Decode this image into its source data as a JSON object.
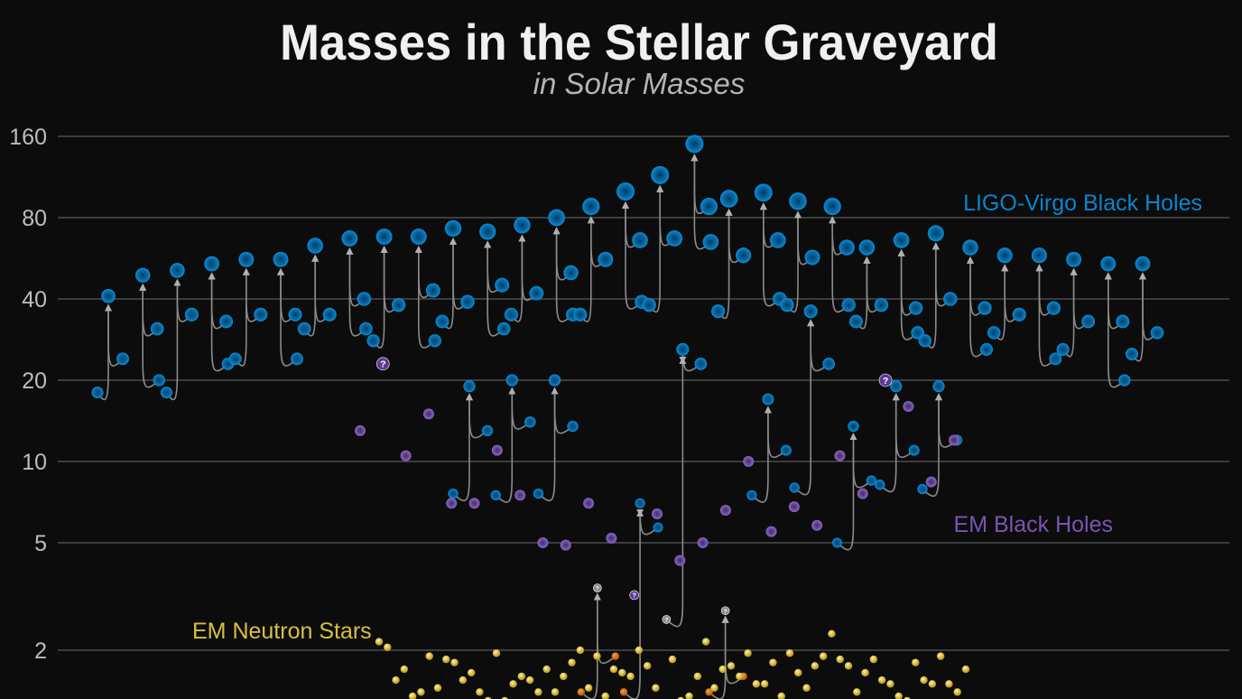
{
  "chart_data": {
    "type": "scatter",
    "title": "Masses in the Stellar Graveyard",
    "subtitle": "in Solar Masses",
    "yscale": "log",
    "ylim": [
      1.3,
      175
    ],
    "yticks": [
      160,
      80,
      40,
      20,
      10,
      5,
      2
    ],
    "ytick_labels": [
      "160",
      "80",
      "40",
      "20",
      "10",
      "5",
      "2"
    ],
    "grid": true,
    "legend": {
      "ligo": "LIGO-Virgo Black Holes",
      "em_bh": "EM Black Holes",
      "em_ns": "EM Neutron Stars"
    },
    "colors": {
      "ligo": "#0a85cc",
      "em_bh": "#7a55b0",
      "em_ns": "#d8c040",
      "ligo_ns": "#e07a10",
      "unknown": "#c8c8c8",
      "grid": "#5a5a5a",
      "arrow": "#8a8a8a"
    },
    "ligo_mergers": [
      {
        "final": 41,
        "m1": 24,
        "m2": 18
      },
      {
        "final": 49,
        "m1": 31,
        "m2": 20
      },
      {
        "final": 51,
        "m1": 35,
        "m2": 18
      },
      {
        "final": 54,
        "m1": 33,
        "m2": 23
      },
      {
        "final": 56,
        "m1": 35,
        "m2": 24
      },
      {
        "final": 56,
        "m1": 35,
        "m2": 24
      },
      {
        "final": 63,
        "m1": 35,
        "m2": 31
      },
      {
        "final": 67,
        "m1": 40,
        "m2": 31
      },
      {
        "final": 68,
        "m1": 38,
        "m2": 28
      },
      {
        "final": 68,
        "m1": 43,
        "m2": 28
      },
      {
        "final": 73,
        "m1": 39,
        "m2": 33
      },
      {
        "final": 71,
        "m1": 45,
        "m2": 31
      },
      {
        "final": 75,
        "m1": 42,
        "m2": 35
      },
      {
        "final": 80,
        "m1": 50,
        "m2": 35
      },
      {
        "final": 88,
        "m1": 56,
        "m2": 35
      },
      {
        "final": 100,
        "m1": 66,
        "m2": 39
      },
      {
        "final": 115,
        "m1": 67,
        "m2": 38
      },
      {
        "final": 150,
        "m1": 88,
        "m2": 65
      },
      {
        "final": 94,
        "m1": 58,
        "m2": 36
      },
      {
        "final": 99,
        "m1": 66,
        "m2": 40
      },
      {
        "final": 92,
        "m1": 57,
        "m2": 38
      },
      {
        "final": 88,
        "m1": 62,
        "m2": 38
      },
      {
        "final": 62,
        "m1": 38,
        "m2": 33
      },
      {
        "final": 66,
        "m1": 37,
        "m2": 30
      },
      {
        "final": 70,
        "m1": 40,
        "m2": 28
      },
      {
        "final": 62,
        "m1": 37,
        "m2": 26
      },
      {
        "final": 58,
        "m1": 35,
        "m2": 30
      },
      {
        "final": 58,
        "m1": 37,
        "m2": 24
      },
      {
        "final": 56,
        "m1": 33,
        "m2": 26
      },
      {
        "final": 54,
        "m1": 33,
        "m2": 20
      },
      {
        "final": 54,
        "m1": 30,
        "m2": 25
      }
    ],
    "low_mergers": [
      {
        "final": 19,
        "m1": 13,
        "m2": 7.6,
        "final_kind": "bh",
        "m1_kind": "bh",
        "m2_kind": "bh"
      },
      {
        "final": 20,
        "m1": 14,
        "m2": 7.5,
        "final_kind": "bh",
        "m1_kind": "bh",
        "m2_kind": "bh"
      },
      {
        "final": 20,
        "m1": 13.5,
        "m2": 7.6,
        "final_kind": "bh",
        "m1_kind": "bh",
        "m2_kind": "bh"
      },
      {
        "final": 3.4,
        "m1": 1.9,
        "m2": 1.4,
        "final_kind": "unknown",
        "m1_kind": "ns",
        "m2_kind": "ns"
      },
      {
        "final": 7,
        "m1": 5.7,
        "m2": 1.4,
        "final_kind": "bh",
        "m1_kind": "bh",
        "m2_kind": "ns"
      },
      {
        "final": 26,
        "m1": 23,
        "m2": 2.6,
        "final_kind": "bh",
        "m1_kind": "bh",
        "m2_kind": "unknown"
      },
      {
        "final": 2.8,
        "m1": 1.6,
        "m2": 1.4,
        "final_kind": "unknown",
        "m1_kind": "ns",
        "m2_kind": "ns"
      },
      {
        "final": 17,
        "m1": 11,
        "m2": 7.5,
        "final_kind": "bh",
        "m1_kind": "bh",
        "m2_kind": "bh"
      },
      {
        "final": 36,
        "m1": 23,
        "m2": 8,
        "final_kind": "bh",
        "m1_kind": "bh",
        "m2_kind": "bh"
      },
      {
        "final": 13.5,
        "m1": 8.5,
        "m2": 5,
        "final_kind": "bh",
        "m1_kind": "bh",
        "m2_kind": "bh"
      },
      {
        "final": 19,
        "m1": 11,
        "m2": 8.2,
        "final_kind": "bh",
        "m1_kind": "bh",
        "m2_kind": "bh"
      },
      {
        "final": 19,
        "m1": 12,
        "m2": 7.9,
        "final_kind": "bh",
        "m1_kind": "bh",
        "m2_kind": "bh"
      }
    ],
    "em_black_holes": [
      {
        "m": 13
      },
      {
        "m": 23,
        "uncertain": true
      },
      {
        "m": 10.5
      },
      {
        "m": 15
      },
      {
        "m": 7
      },
      {
        "m": 7
      },
      {
        "m": 11
      },
      {
        "m": 7.5
      },
      {
        "m": 5
      },
      {
        "m": 4.9
      },
      {
        "m": 7
      },
      {
        "m": 5.2
      },
      {
        "m": 3.2,
        "uncertain": true
      },
      {
        "m": 6.4
      },
      {
        "m": 4.3
      },
      {
        "m": 5
      },
      {
        "m": 6.6
      },
      {
        "m": 10
      },
      {
        "m": 5.5
      },
      {
        "m": 6.8
      },
      {
        "m": 5.8
      },
      {
        "m": 10.5
      },
      {
        "m": 7.6
      },
      {
        "m": 20,
        "uncertain": true
      },
      {
        "m": 16
      },
      {
        "m": 8.4
      },
      {
        "m": 12
      }
    ],
    "em_neutron_stars": [
      2.15,
      1.35,
      1.7,
      1.45,
      1.9,
      1.6,
      1.8,
      1.5,
      1.4,
      1.95,
      1.3,
      1.75,
      1.55,
      1.85,
      1.4,
      1.65,
      2.0,
      1.5,
      1.35,
      1.8,
      1.6,
      1.9,
      1.45,
      1.7,
      1.3,
      1.55,
      2.15,
      1.4,
      1.75,
      1.85,
      1.5,
      1.65,
      1.35,
      1.95,
      1.45,
      1.6,
      2.3,
      1.7,
      1.4,
      1.8,
      1.55,
      1.9,
      1.3,
      1.65,
      1.5,
      1.75,
      1.4,
      1.85,
      2.05,
      1.6,
      1.35,
      1.7,
      1.45,
      1.95,
      1.55,
      1.8,
      1.3,
      1.65,
      1.5,
      1.9,
      1.4,
      1.75,
      1.6,
      1.85,
      1.45,
      1.35,
      1.7,
      1.55,
      2.0,
      1.5
    ]
  }
}
